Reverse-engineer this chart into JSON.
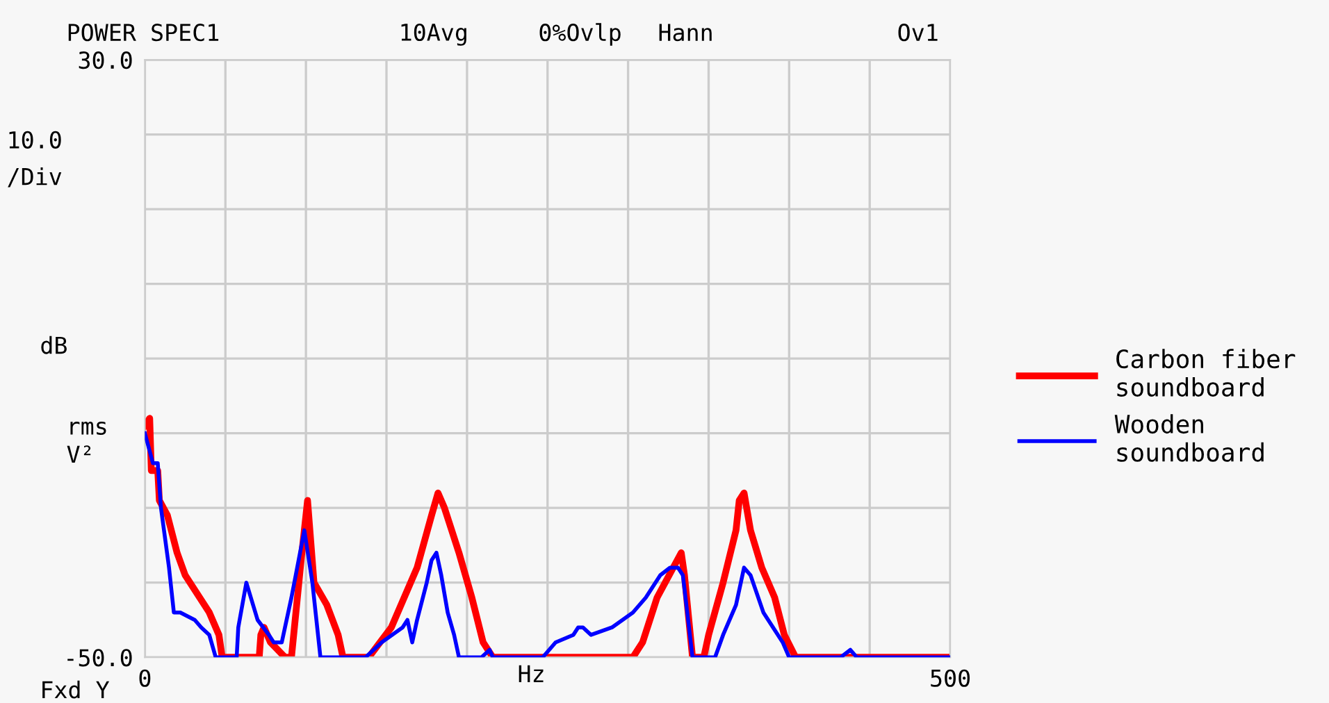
{
  "chart_data": {
    "type": "line",
    "title": "POWER SPEC1",
    "xlabel": "Hz",
    "annotations": [
      "10Avg",
      "0%Ovlp",
      "Hann",
      "Ov1",
      "10.0\n/Div",
      "dB",
      "rms",
      "V²",
      "Fxd Y"
    ],
    "xlim": [
      0,
      500
    ],
    "ylim": [
      -50,
      30
    ],
    "xticks": [
      0,
      {
        "value": 50,
        "label": null
      },
      {
        "value": 100,
        "label": null
      },
      {
        "value": 150,
        "label": null
      },
      {
        "value": 200,
        "label": null
      },
      {
        "value": 250,
        "label": null
      },
      {
        "value": 300,
        "label": null
      },
      {
        "value": 350,
        "label": null
      },
      {
        "value": 400,
        "label": null
      },
      {
        "value": 450,
        "label": null
      },
      500
    ],
    "yticks": [
      {
        "value": -50,
        "label": "-50.0"
      },
      {
        "value": -40,
        "label": null
      },
      {
        "value": -30,
        "label": null
      },
      {
        "value": -20,
        "label": null
      },
      {
        "value": -10,
        "label": null
      },
      {
        "value": 0,
        "label": null
      },
      {
        "value": 10,
        "label": null
      },
      {
        "value": 20,
        "label": null
      },
      {
        "value": 30,
        "label": "30.0"
      }
    ],
    "grid": true,
    "legend": "right",
    "marker": "none",
    "line_style": "solid",
    "series": [
      {
        "name": "Carbon fiber\nsoundboard",
        "color": "#ff0000",
        "x": [
          0,
          3,
          4,
          8,
          9,
          14,
          20,
          25,
          34,
          40,
          46,
          48,
          71,
          72,
          74,
          78,
          87,
          91,
          97,
          101,
          105,
          113,
          120,
          123,
          139,
          153,
          169,
          178,
          182,
          186,
          195,
          203,
          210,
          216,
          303,
          309,
          318,
          328,
          333,
          335,
          340,
          347,
          350,
          359,
          367,
          369,
          372,
          376,
          383,
          391,
          397,
          404,
          499
        ],
        "values": [
          -19,
          -18,
          -25,
          -25,
          -29,
          -31,
          -36,
          -39,
          -42,
          -44,
          -47,
          -50,
          -50,
          -47,
          -46,
          -48,
          -50,
          -50,
          -37,
          -29,
          -40,
          -43,
          -47,
          -50,
          -50,
          -46,
          -38,
          -31,
          -28,
          -30,
          -36,
          -42,
          -48,
          -50,
          -50,
          -48,
          -42,
          -38,
          -36,
          -39,
          -50,
          -50,
          -47,
          -40,
          -33,
          -29,
          -28,
          -33,
          -38,
          -42,
          -47,
          -50,
          -50
        ]
      },
      {
        "name": "Wooden\nsoundboard",
        "color": "#0000ff",
        "x": [
          0,
          5,
          8,
          10,
          15,
          18,
          22,
          31,
          35,
          40,
          44,
          46,
          57,
          58,
          63,
          70,
          77,
          80,
          85,
          87,
          91,
          99,
          104,
          109,
          137,
          147,
          160,
          163,
          166,
          169,
          175,
          178,
          181,
          184,
          188,
          192,
          195,
          209,
          214,
          216,
          247,
          255,
          266,
          269,
          272,
          277,
          290,
          303,
          311,
          320,
          326,
          331,
          334,
          340,
          346,
          354,
          359,
          367,
          372,
          376,
          384,
          390,
          396,
          400,
          432,
          438,
          442,
          499
        ],
        "values": [
          -20,
          -24,
          -24,
          -30,
          -38,
          -44,
          -44,
          -45,
          -46,
          -47,
          -50,
          -50,
          -50,
          -46,
          -40,
          -45,
          -47,
          -48,
          -48,
          -46,
          -42,
          -33,
          -40,
          -50,
          -50,
          -48,
          -46,
          -45,
          -48,
          -45,
          -40,
          -37,
          -36,
          -39,
          -44,
          -47,
          -50,
          -50,
          -49,
          -50,
          -50,
          -48,
          -47,
          -46,
          -46,
          -47,
          -46,
          -44,
          -42,
          -39,
          -38,
          -38,
          -39,
          -50,
          -50,
          -50,
          -47,
          -43,
          -38,
          -39,
          -44,
          -46,
          -48,
          -50,
          -50,
          -49,
          -50,
          -50
        ]
      }
    ]
  }
}
